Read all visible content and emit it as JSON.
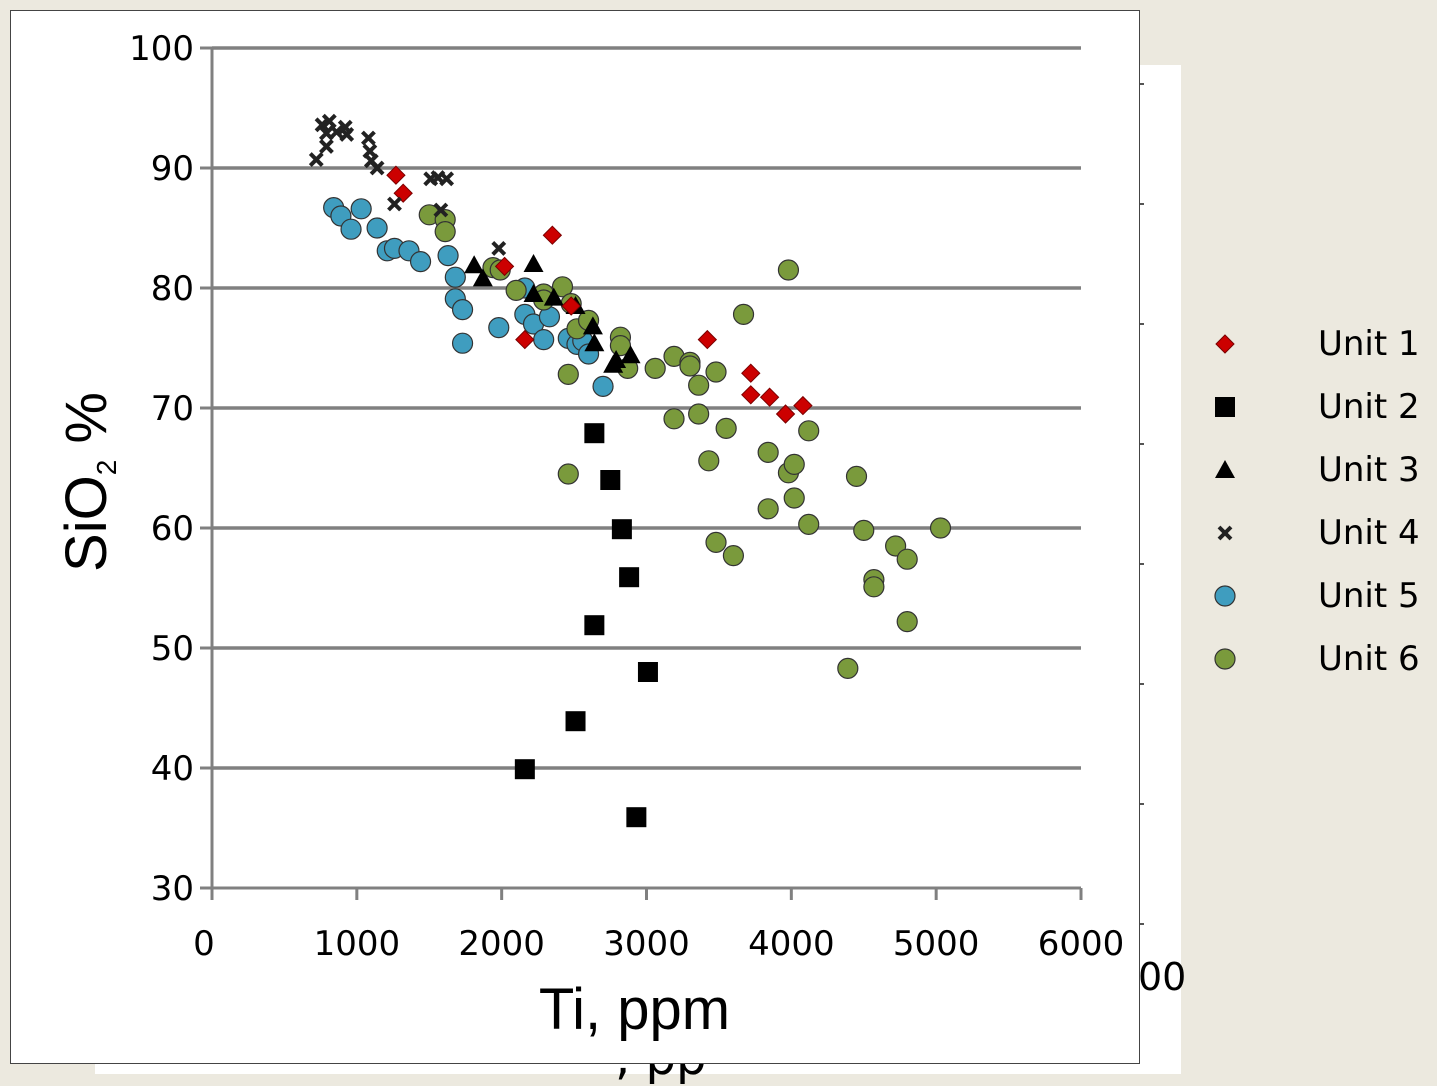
{
  "chart_data": {
    "type": "scatter",
    "xlabel": "Ti, ppm",
    "ylabel_main": "SiO",
    "ylabel_sub": "2",
    "ylabel_suffix": " %",
    "xlim": [
      0,
      6000
    ],
    "ylim": [
      30,
      100
    ],
    "x_ticks": [
      "0",
      "1000",
      "2000",
      "3000",
      "4000",
      "5000",
      "6000"
    ],
    "y_ticks": [
      "30",
      "40",
      "50",
      "60",
      "70",
      "80",
      "90",
      "100"
    ],
    "grid": "horizontal",
    "legend_position": "right",
    "background_fragments": {
      "tick_label": "00",
      "axis_label_fragment": ", pp"
    },
    "series": [
      {
        "name": "Unit 1",
        "marker": "diamond",
        "color": "#cc0000",
        "points": [
          [
            1270,
            89.4
          ],
          [
            1320,
            87.9
          ],
          [
            2020,
            81.8
          ],
          [
            2160,
            75.7
          ],
          [
            2350,
            84.4
          ],
          [
            2480,
            78.5
          ],
          [
            3420,
            75.7
          ],
          [
            3720,
            72.9
          ],
          [
            3720,
            71.1
          ],
          [
            3850,
            70.9
          ],
          [
            3960,
            69.5
          ],
          [
            4080,
            70.2
          ]
        ]
      },
      {
        "name": "Unit 2",
        "marker": "square",
        "color": "#000000",
        "points": [
          [
            2640,
            67.9
          ],
          [
            2750,
            64.0
          ],
          [
            2830,
            59.9
          ],
          [
            2880,
            55.9
          ],
          [
            2640,
            51.9
          ],
          [
            3010,
            48.0
          ],
          [
            2510,
            43.9
          ],
          [
            2160,
            39.9
          ],
          [
            2930,
            35.9
          ]
        ]
      },
      {
        "name": "Unit 3",
        "marker": "triangle",
        "color": "#000000",
        "points": [
          [
            1810,
            81.9
          ],
          [
            1870,
            80.8
          ],
          [
            2220,
            82.0
          ],
          [
            2220,
            79.5
          ],
          [
            2360,
            79.2
          ],
          [
            2510,
            78.5
          ],
          [
            2630,
            76.8
          ],
          [
            2640,
            75.4
          ],
          [
            2770,
            73.6
          ],
          [
            2890,
            74.4
          ],
          [
            2790,
            74.0
          ]
        ]
      },
      {
        "name": "Unit 4",
        "marker": "x",
        "color": "#222222",
        "points": [
          [
            720,
            90.7
          ],
          [
            790,
            91.8
          ],
          [
            760,
            93.6
          ],
          [
            810,
            93.9
          ],
          [
            790,
            92.9
          ],
          [
            860,
            93.0
          ],
          [
            920,
            93.4
          ],
          [
            930,
            92.8
          ],
          [
            1080,
            92.5
          ],
          [
            1090,
            91.4
          ],
          [
            1100,
            90.6
          ],
          [
            1140,
            90.0
          ],
          [
            1260,
            87.0
          ],
          [
            1510,
            89.1
          ],
          [
            1560,
            89.2
          ],
          [
            1580,
            86.5
          ],
          [
            1620,
            89.1
          ],
          [
            1980,
            83.3
          ]
        ]
      },
      {
        "name": "Unit 5",
        "marker": "circle",
        "color": "#3f9dbf",
        "points": [
          [
            840,
            86.7
          ],
          [
            890,
            86.0
          ],
          [
            960,
            84.9
          ],
          [
            1030,
            86.6
          ],
          [
            1140,
            85.0
          ],
          [
            1210,
            83.1
          ],
          [
            1260,
            83.3
          ],
          [
            1360,
            83.1
          ],
          [
            1440,
            82.2
          ],
          [
            1630,
            82.7
          ],
          [
            1680,
            80.9
          ],
          [
            1680,
            79.1
          ],
          [
            1730,
            78.2
          ],
          [
            1730,
            75.4
          ],
          [
            1980,
            76.7
          ],
          [
            2160,
            80.0
          ],
          [
            2160,
            77.8
          ],
          [
            2220,
            77.0
          ],
          [
            2290,
            75.7
          ],
          [
            2330,
            77.6
          ],
          [
            2460,
            75.8
          ],
          [
            2520,
            75.3
          ],
          [
            2560,
            75.6
          ],
          [
            2600,
            74.5
          ],
          [
            2700,
            71.8
          ]
        ]
      },
      {
        "name": "Unit 6",
        "marker": "circle",
        "color": "#7a9a3c",
        "points": [
          [
            1500,
            86.1
          ],
          [
            1610,
            85.7
          ],
          [
            1610,
            84.7
          ],
          [
            1940,
            81.7
          ],
          [
            1990,
            81.5
          ],
          [
            2100,
            79.8
          ],
          [
            2290,
            79.5
          ],
          [
            2290,
            79.0
          ],
          [
            2420,
            80.1
          ],
          [
            2480,
            78.7
          ],
          [
            2520,
            76.6
          ],
          [
            2600,
            77.3
          ],
          [
            2460,
            72.8
          ],
          [
            2460,
            64.5
          ],
          [
            2820,
            75.9
          ],
          [
            2820,
            75.2
          ],
          [
            2870,
            73.3
          ],
          [
            3060,
            73.3
          ],
          [
            3190,
            74.3
          ],
          [
            3190,
            69.1
          ],
          [
            3300,
            73.8
          ],
          [
            3300,
            73.5
          ],
          [
            3360,
            71.9
          ],
          [
            3360,
            69.5
          ],
          [
            3430,
            65.6
          ],
          [
            3480,
            73.0
          ],
          [
            3480,
            58.8
          ],
          [
            3550,
            68.3
          ],
          [
            3600,
            57.7
          ],
          [
            3670,
            77.8
          ],
          [
            3840,
            66.3
          ],
          [
            3840,
            61.6
          ],
          [
            3980,
            81.5
          ],
          [
            3980,
            64.6
          ],
          [
            4020,
            65.3
          ],
          [
            4020,
            62.5
          ],
          [
            4120,
            68.1
          ],
          [
            4120,
            60.3
          ],
          [
            4390,
            48.3
          ],
          [
            4450,
            64.3
          ],
          [
            4500,
            59.8
          ],
          [
            4570,
            55.7
          ],
          [
            4570,
            55.1
          ],
          [
            4720,
            58.5
          ],
          [
            4800,
            57.4
          ],
          [
            4800,
            52.2
          ],
          [
            5030,
            60.0
          ]
        ]
      }
    ]
  }
}
